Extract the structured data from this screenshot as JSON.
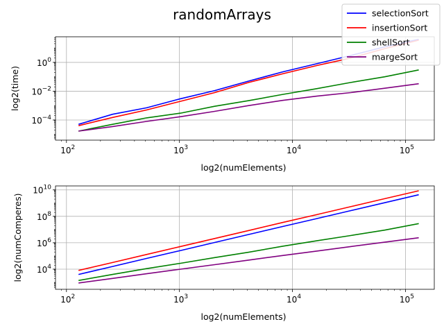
{
  "figure": {
    "suptitle": "randomArrays",
    "legend_placement": "top-right"
  },
  "legend": [
    {
      "name": "selectionSort",
      "color": "#0000ff"
    },
    {
      "name": "insertionSort",
      "color": "#ff0000"
    },
    {
      "name": "shellSort",
      "color": "#008000"
    },
    {
      "name": "margeSort",
      "color": "#800080"
    }
  ],
  "chart_data": [
    {
      "type": "line",
      "xlabel": "log2(numElements)",
      "ylabel": "log2(time)",
      "xscale": "log",
      "yscale": "log",
      "xlim": [
        80,
        180000
      ],
      "ylim": [
        4e-06,
        60
      ],
      "grid": true,
      "xticks": [
        100,
        1000,
        10000,
        100000
      ],
      "xtick_labels": [
        "10",
        "10",
        "10",
        "10"
      ],
      "xtick_exps": [
        "2",
        "3",
        "4",
        "5"
      ],
      "yticks": [
        0.0001,
        0.01,
        1
      ],
      "ytick_labels": [
        "10",
        "10",
        "10"
      ],
      "ytick_exps": [
        "−4",
        "−2",
        "0"
      ],
      "x": [
        128,
        256,
        512,
        1024,
        2048,
        4096,
        8192,
        16384,
        32768,
        65536,
        131072
      ],
      "series": [
        {
          "name": "selectionSort",
          "color": "#0000ff",
          "values": [
            5e-05,
            0.00025,
            0.0007,
            0.003,
            0.011,
            0.05,
            0.22,
            0.8,
            3.0,
            12.0,
            40.0
          ]
        },
        {
          "name": "insertionSort",
          "color": "#ff0000",
          "values": [
            4e-05,
            0.00015,
            0.0005,
            0.002,
            0.008,
            0.04,
            0.16,
            0.6,
            2.0,
            9.0,
            35.0
          ]
        },
        {
          "name": "shellSort",
          "color": "#008000",
          "values": [
            1.7e-05,
            5e-05,
            0.00014,
            0.0003,
            0.0009,
            0.0022,
            0.006,
            0.015,
            0.04,
            0.1,
            0.3
          ]
        },
        {
          "name": "margeSort",
          "color": "#800080",
          "values": [
            1.7e-05,
            3.5e-05,
            8e-05,
            0.00017,
            0.0004,
            0.001,
            0.0023,
            0.0045,
            0.008,
            0.016,
            0.033
          ]
        }
      ]
    },
    {
      "type": "line",
      "xlabel": "log2(numElements)",
      "ylabel": "log2(numComperes)",
      "xscale": "log",
      "yscale": "log",
      "xlim": [
        80,
        180000
      ],
      "ylim": [
        300,
        20000000000
      ],
      "grid": true,
      "xticks": [
        100,
        1000,
        10000,
        100000
      ],
      "xtick_labels": [
        "10",
        "10",
        "10",
        "10"
      ],
      "xtick_exps": [
        "2",
        "3",
        "4",
        "5"
      ],
      "yticks": [
        10000,
        1000000,
        100000000,
        10000000000
      ],
      "ytick_labels": [
        "10",
        "10",
        "10",
        "10"
      ],
      "ytick_exps": [
        "4",
        "6",
        "8",
        "10"
      ],
      "x": [
        128,
        256,
        512,
        1024,
        2048,
        4096,
        8192,
        16384,
        32768,
        65536,
        131072
      ],
      "series": [
        {
          "name": "selectionSort",
          "color": "#0000ff",
          "values": [
            4000,
            16000,
            65000,
            260000,
            1050000,
            4200000,
            17000000,
            67000000,
            270000000,
            1070000000,
            4300000000
          ]
        },
        {
          "name": "insertionSort",
          "color": "#ff0000",
          "values": [
            8000,
            32000,
            130000,
            520000,
            2100000,
            8400000,
            34000000,
            134000000,
            540000000,
            2150000000,
            8600000000
          ]
        },
        {
          "name": "shellSort",
          "color": "#008000",
          "values": [
            1400,
            4000,
            11000,
            28000,
            75000,
            190000,
            550000,
            1400000,
            3500000,
            9000000,
            28000000
          ]
        },
        {
          "name": "margeSort",
          "color": "#800080",
          "values": [
            900,
            2000,
            4500,
            10000,
            22000,
            49000,
            108000,
            236000,
            512000,
            1100000,
            2400000
          ]
        }
      ]
    }
  ]
}
